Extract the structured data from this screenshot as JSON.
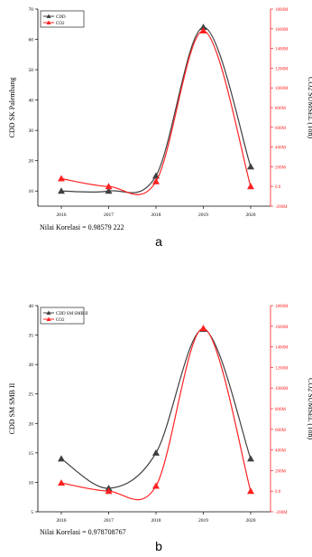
{
  "colors": {
    "cdd": "#404040",
    "co2": "#ff2020",
    "axis_left": "#000000",
    "axis_right": "#ff2020"
  },
  "chart_data": [
    {
      "type": "line",
      "panel_label": "a",
      "x": [
        "2016",
        "2017",
        "2018",
        "2019",
        "2020"
      ],
      "series": [
        {
          "name": "CDD",
          "axis": "left",
          "values": [
            10,
            10,
            15,
            64,
            18
          ]
        },
        {
          "name": "CO2",
          "axis": "right",
          "values": [
            80,
            0,
            50,
            1580,
            0
          ]
        }
      ],
      "ylabel": "CDD SK Palembang",
      "y2label": "CO2 SUMSEL (Ton)",
      "ylim": [
        5,
        70
      ],
      "yticks": [
        "10",
        "20",
        "30",
        "40",
        "50",
        "60",
        "70"
      ],
      "y2lim": [
        -200,
        1800
      ],
      "y2ticks": [
        "-200M",
        "0.0",
        "200M",
        "400M",
        "600M",
        "800M",
        "1000M",
        "1200M",
        "1400M",
        "1600M",
        "1800M"
      ],
      "legend_position": "top-left",
      "caption": "Nilai Korelasi = 0.98579 222"
    },
    {
      "type": "line",
      "panel_label": "b",
      "x": [
        "2016",
        "2017",
        "2018",
        "2019",
        "2020"
      ],
      "series": [
        {
          "name": "CDD SM SMB II",
          "axis": "left",
          "values": [
            14,
            9,
            15,
            36,
            14
          ]
        },
        {
          "name": "CO2",
          "axis": "right",
          "values": [
            80,
            0,
            50,
            1580,
            0
          ]
        }
      ],
      "ylabel": "CDD SM SMB II",
      "y2label": "CO2 SUMSEL (Ton)",
      "ylim": [
        5,
        40
      ],
      "yticks": [
        "5",
        "10",
        "15",
        "20",
        "25",
        "30",
        "35",
        "40"
      ],
      "y2lim": [
        -200,
        1800
      ],
      "y2ticks": [
        "-200M",
        "0.0",
        "200M",
        "400M",
        "600M",
        "800M",
        "1000M",
        "1200M",
        "1400M",
        "1600M",
        "1800M"
      ],
      "legend_position": "top-left",
      "caption": "Nilai Korelasi = 0.978708767"
    }
  ]
}
